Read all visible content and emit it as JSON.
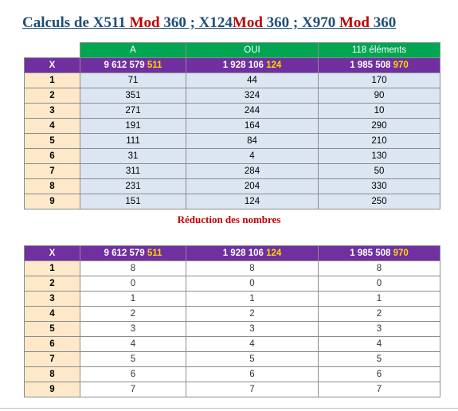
{
  "title": {
    "part1": "Calculs de X511 ",
    "mod1": "Mod",
    "part2": " 360 ; X124",
    "mod2": "Mod",
    "part3": " 360 ; X970 ",
    "mod3": "Mod",
    "part4": " 360"
  },
  "table1": {
    "headers": [
      "A",
      "OUI",
      "118 éléments"
    ],
    "purple": {
      "x": "X",
      "a_main": "9 612 579 ",
      "a_hl": "511",
      "b_main": "1 928 106 ",
      "b_hl": "124",
      "c_main": "1 985 508 ",
      "c_hl": "970"
    },
    "rows": [
      [
        "1",
        "71",
        "44",
        "170"
      ],
      [
        "2",
        "351",
        "324",
        "90"
      ],
      [
        "3",
        "271",
        "244",
        "10"
      ],
      [
        "4",
        "191",
        "164",
        "290"
      ],
      [
        "5",
        "111",
        "84",
        "210"
      ],
      [
        "6",
        "31",
        "4",
        "130"
      ],
      [
        "7",
        "311",
        "284",
        "50"
      ],
      [
        "8",
        "231",
        "204",
        "330"
      ],
      [
        "9",
        "151",
        "124",
        "250"
      ]
    ]
  },
  "subtitle": "Réduction des nombres",
  "table2": {
    "purple": {
      "x": "X",
      "a_main": "9 612 579 ",
      "a_hl": "511",
      "b_main": "1 928 106 ",
      "b_hl": "124",
      "c_main": "1 985 508 ",
      "c_hl": "970"
    },
    "rows": [
      [
        "1",
        "8",
        "8",
        "8"
      ],
      [
        "2",
        "0",
        "0",
        "0"
      ],
      [
        "3",
        "1",
        "1",
        "1"
      ],
      [
        "4",
        "2",
        "2",
        "2"
      ],
      [
        "5",
        "3",
        "3",
        "3"
      ],
      [
        "6",
        "4",
        "4",
        "4"
      ],
      [
        "7",
        "5",
        "5",
        "5"
      ],
      [
        "8",
        "6",
        "6",
        "6"
      ],
      [
        "9",
        "7",
        "7",
        "7"
      ]
    ]
  },
  "colors": {
    "title": "#1f4e79",
    "mod": "#c00000",
    "header_green": "#00a651",
    "purple": "#7030a0",
    "highlight": "#ffd700",
    "data_blue": "#dce6f2",
    "x_column": "#fde9c9"
  }
}
